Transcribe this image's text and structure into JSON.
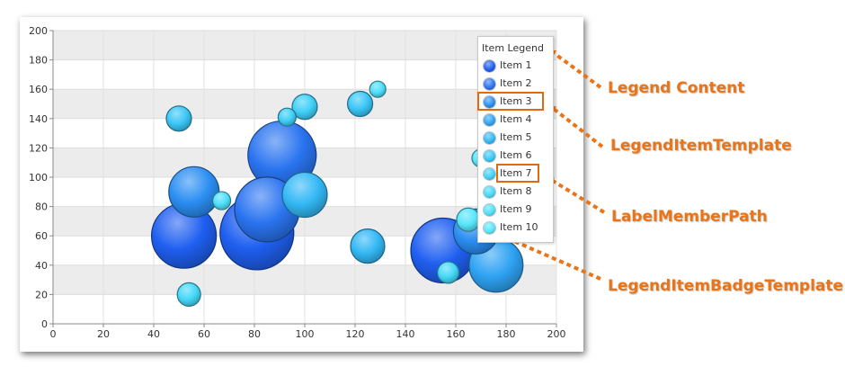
{
  "chart_data": {
    "type": "scatter",
    "variant": "bubble",
    "xlim": [
      0,
      200
    ],
    "ylim": [
      0,
      200
    ],
    "x_ticks": [
      0,
      20,
      40,
      60,
      80,
      100,
      120,
      140,
      160,
      180,
      200
    ],
    "y_ticks": [
      0,
      20,
      40,
      60,
      80,
      100,
      120,
      140,
      160,
      180,
      200
    ],
    "grid": "alternating horizontal bands",
    "legend_placement": "top-right",
    "legend_title": "Item Legend",
    "series": [
      {
        "name": "Item 1",
        "color": "#1f5ff0",
        "points": [
          {
            "x": 52,
            "y": 60,
            "r": 36
          },
          {
            "x": 81,
            "y": 62,
            "r": 41
          },
          {
            "x": 155,
            "y": 50,
            "r": 36
          }
        ]
      },
      {
        "name": "Item 2",
        "color": "#2a74f0",
        "points": [
          {
            "x": 91,
            "y": 115,
            "r": 38
          },
          {
            "x": 85,
            "y": 78,
            "r": 36
          }
        ]
      },
      {
        "name": "Item 3",
        "color": "#2b8ef2",
        "points": [
          {
            "x": 56,
            "y": 90,
            "r": 28
          },
          {
            "x": 168,
            "y": 63,
            "r": 25
          }
        ]
      },
      {
        "name": "Item 4",
        "color": "#2fa3f3",
        "points": [
          {
            "x": 176,
            "y": 40,
            "r": 30
          }
        ]
      },
      {
        "name": "Item 5",
        "color": "#33b8f5",
        "points": [
          {
            "x": 100,
            "y": 88,
            "r": 25
          },
          {
            "x": 125,
            "y": 53,
            "r": 19
          }
        ]
      },
      {
        "name": "Item 6",
        "color": "#3ac6f7",
        "points": [
          {
            "x": 50,
            "y": 140,
            "r": 14
          },
          {
            "x": 122,
            "y": 150,
            "r": 14
          }
        ]
      },
      {
        "name": "Item 7",
        "color": "#3fd0f8",
        "points": [
          {
            "x": 100,
            "y": 148,
            "r": 14
          },
          {
            "x": 93,
            "y": 141,
            "r": 10
          }
        ]
      },
      {
        "name": "Item 8",
        "color": "#45d8f9",
        "points": [
          {
            "x": 54,
            "y": 20,
            "r": 13
          },
          {
            "x": 157,
            "y": 35,
            "r": 12
          }
        ]
      },
      {
        "name": "Item 9",
        "color": "#4ee0fa",
        "points": [
          {
            "x": 129,
            "y": 160,
            "r": 9
          },
          {
            "x": 67,
            "y": 84,
            "r": 10
          }
        ]
      },
      {
        "name": "Item 10",
        "color": "#58e6fb",
        "points": [
          {
            "x": 165,
            "y": 71,
            "r": 13
          },
          {
            "x": 170,
            "y": 113,
            "r": 10
          }
        ]
      }
    ]
  },
  "annotations": {
    "legend_content": "Legend Content",
    "legend_item_template": "LegendItemTemplate",
    "label_member_path": "LabelMemberPath",
    "legend_item_badge_template": "LegendItemBadgeTemplate"
  },
  "colors": {
    "annotation": "#ea7416",
    "callout_border": "#e06a10"
  }
}
